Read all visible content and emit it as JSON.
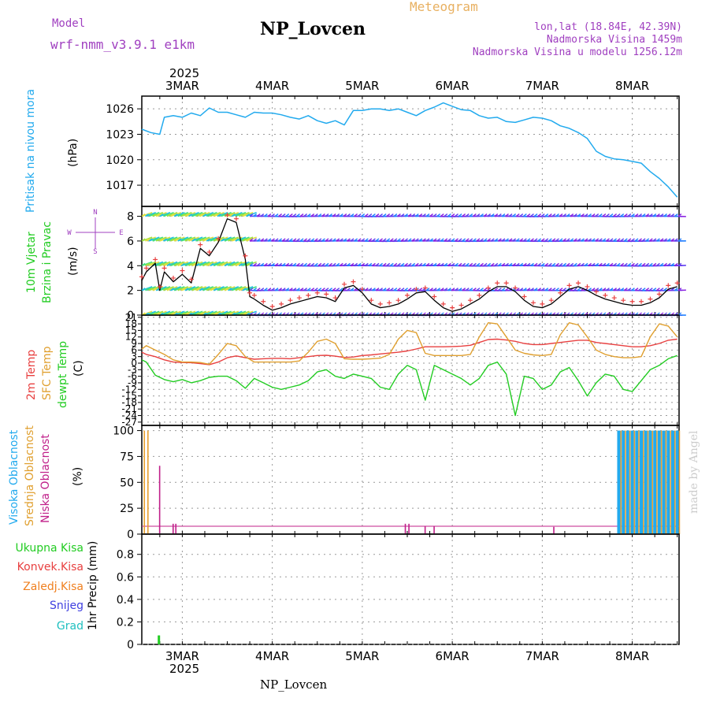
{
  "header": {
    "model_label": "Model",
    "model_name": "wrf-nmm_v3.9.1 e1km",
    "station": "NP_Lovcen",
    "title": "Meteogram",
    "coords": "lon,lat (18.84E, 42.39N)",
    "elevation": "Nadmorska Visina 1459m",
    "model_elevation": "Nadmorska Visina u modelu 1256.12m",
    "year_top": "2025",
    "year_bottom": "2025",
    "footer_station": "NP_Lovcen",
    "credit": "made by Angel"
  },
  "colors": {
    "pressure": "#22aaee",
    "t2m": "#e84040",
    "sfc": "#e0a030",
    "dewpt": "#22cc22",
    "high_cloud": "#22aaee",
    "mid_cloud": "#e8a030",
    "low_cloud": "#c0208a",
    "wind_speed": "#000000",
    "wind_marker": "#e84040",
    "legend_purple": "#a040c0",
    "frame": "#000000",
    "grid": "#999999"
  },
  "x_axis": {
    "day_labels": [
      "3MAR",
      "4MAR",
      "5MAR",
      "6MAR",
      "7MAR",
      "8MAR"
    ],
    "range_days": [
      2.55,
      8.52
    ]
  },
  "panels": {
    "pressure": {
      "ylabel_a": "Pritisak na nivou mora",
      "ylabel_b": "(hPa)",
      "ticks": [
        "1026",
        "1023",
        "1020",
        "1017"
      ]
    },
    "wind": {
      "ylabel_a": "10m Vjetar",
      "ylabel_b": "Brzina i Pravac",
      "ylabel_c": "(m/s)",
      "ticks": [
        "0",
        "2",
        "4",
        "6",
        "8"
      ],
      "compass_n": "N",
      "compass_w": "W",
      "compass_e": "E",
      "compass_s": "S"
    },
    "temperature": {
      "ylabel_a": "2m Temp",
      "ylabel_b": "SFC Temp",
      "ylabel_c": "dewpt Temp",
      "ylabel_d": "(C)",
      "ticks": [
        "21",
        "18",
        "15",
        "12",
        "9",
        "6",
        "3",
        "0",
        "-3",
        "-6",
        "-9",
        "-12",
        "-15",
        "-18",
        "-21",
        "-24",
        "-27"
      ]
    },
    "cloud": {
      "ylabel_a": "Visoka Oblacnost",
      "ylabel_b": "Srednja Oblacnost",
      "ylabel_c": "Niska Oblacnost",
      "ylabel_d": "(%)",
      "ticks": [
        "0",
        "25",
        "50",
        "75",
        "100"
      ]
    },
    "precip": {
      "legend": [
        "Ukupna Kisa",
        "Konvek.Kisa",
        "Zaledj.Kisa",
        "Snijeg",
        "Grad"
      ],
      "legend_colors": [
        "#22cc22",
        "#e84040",
        "#f08020",
        "#4040e0",
        "#20c0c0"
      ],
      "ylabel": "1hr Precip (mm)",
      "ticks": [
        "0",
        "0.2",
        "0.4",
        "0.6",
        "0.8"
      ]
    }
  },
  "chart_data": [
    {
      "type": "line",
      "name": "pressure",
      "ylim": [
        1014.5,
        1027.5
      ],
      "x": [
        2.55,
        2.65,
        2.75,
        2.8,
        2.9,
        3.0,
        3.1,
        3.2,
        3.3,
        3.4,
        3.5,
        3.6,
        3.7,
        3.8,
        3.9,
        4.0,
        4.1,
        4.2,
        4.3,
        4.4,
        4.5,
        4.6,
        4.7,
        4.8,
        4.9,
        5.0,
        5.1,
        5.2,
        5.3,
        5.4,
        5.5,
        5.6,
        5.7,
        5.8,
        5.9,
        6.0,
        6.1,
        6.2,
        6.3,
        6.4,
        6.5,
        6.6,
        6.7,
        6.8,
        6.9,
        7.0,
        7.1,
        7.2,
        7.3,
        7.4,
        7.5,
        7.6,
        7.7,
        7.8,
        7.9,
        8.0,
        8.1,
        8.2,
        8.3,
        8.4,
        8.5
      ],
      "y": [
        1023.6,
        1023.2,
        1023.0,
        1025.0,
        1025.2,
        1025.0,
        1025.5,
        1025.2,
        1026.1,
        1025.6,
        1025.6,
        1025.3,
        1025.0,
        1025.6,
        1025.5,
        1025.5,
        1025.3,
        1025.0,
        1024.8,
        1025.2,
        1024.6,
        1024.3,
        1024.6,
        1024.1,
        1025.8,
        1025.8,
        1026.0,
        1026.0,
        1025.8,
        1026.0,
        1025.6,
        1025.2,
        1025.8,
        1026.2,
        1026.7,
        1026.3,
        1025.9,
        1025.8,
        1025.2,
        1024.9,
        1025.0,
        1024.5,
        1024.4,
        1024.7,
        1025.0,
        1024.9,
        1024.6,
        1024.0,
        1023.7,
        1023.2,
        1022.5,
        1021.0,
        1020.4,
        1020.1,
        1020.0,
        1019.8,
        1019.6,
        1018.6,
        1017.8,
        1016.8,
        1015.6
      ]
    },
    {
      "type": "line",
      "name": "wind speed",
      "ylim": [
        0,
        8.8
      ],
      "x": [
        2.55,
        2.6,
        2.7,
        2.75,
        2.8,
        2.9,
        3.0,
        3.1,
        3.2,
        3.3,
        3.4,
        3.5,
        3.6,
        3.7,
        3.75,
        3.8,
        3.9,
        4.0,
        4.1,
        4.2,
        4.3,
        4.4,
        4.5,
        4.6,
        4.7,
        4.8,
        4.9,
        5.0,
        5.1,
        5.2,
        5.3,
        5.4,
        5.5,
        5.6,
        5.7,
        5.8,
        5.9,
        6.0,
        6.1,
        6.2,
        6.3,
        6.4,
        6.5,
        6.6,
        6.7,
        6.8,
        6.9,
        7.0,
        7.1,
        7.2,
        7.3,
        7.4,
        7.5,
        7.6,
        7.7,
        7.8,
        7.9,
        8.0,
        8.1,
        8.2,
        8.3,
        8.4,
        8.5
      ],
      "y": [
        2.8,
        3.5,
        4.2,
        2.0,
        3.5,
        2.7,
        3.3,
        2.6,
        5.4,
        4.8,
        5.9,
        7.8,
        7.5,
        4.5,
        1.5,
        1.3,
        0.8,
        0.4,
        0.6,
        0.9,
        1.1,
        1.3,
        1.5,
        1.4,
        1.1,
        2.2,
        2.4,
        1.8,
        0.9,
        0.6,
        0.7,
        0.9,
        1.3,
        1.8,
        1.9,
        1.2,
        0.6,
        0.3,
        0.5,
        0.9,
        1.3,
        1.9,
        2.3,
        2.3,
        1.9,
        1.2,
        0.7,
        0.6,
        0.9,
        1.5,
        2.1,
        2.3,
        2.0,
        1.6,
        1.3,
        1.1,
        0.9,
        0.8,
        0.8,
        1.0,
        1.4,
        2.1,
        2.3
      ]
    },
    {
      "type": "line",
      "name": "temperature",
      "ylim": [
        -28.5,
        22
      ],
      "x": [
        2.55,
        2.6,
        2.7,
        2.8,
        2.9,
        3.0,
        3.1,
        3.2,
        3.3,
        3.4,
        3.5,
        3.6,
        3.7,
        3.8,
        3.9,
        4.0,
        4.1,
        4.2,
        4.3,
        4.4,
        4.5,
        4.6,
        4.7,
        4.8,
        4.9,
        5.0,
        5.1,
        5.2,
        5.3,
        5.4,
        5.5,
        5.6,
        5.7,
        5.8,
        5.9,
        6.0,
        6.1,
        6.2,
        6.3,
        6.4,
        6.5,
        6.6,
        6.7,
        6.8,
        6.9,
        7.0,
        7.1,
        7.2,
        7.3,
        7.4,
        7.5,
        7.6,
        7.7,
        7.8,
        7.9,
        8.0,
        8.1,
        8.2,
        8.3,
        8.4,
        8.5
      ],
      "series": [
        {
          "name": "2m Temp",
          "values": [
            5,
            4,
            3,
            1.5,
            0.5,
            0.3,
            0.2,
            -0.2,
            -0.7,
            0.5,
            2.5,
            3.3,
            2.5,
            1.8,
            2.0,
            2.2,
            2.2,
            2.0,
            2.5,
            3.0,
            3.5,
            3.6,
            3.2,
            2.6,
            2.8,
            3.5,
            3.8,
            4.2,
            4.6,
            5.0,
            5.6,
            6.5,
            7.5,
            7.5,
            7.5,
            7.6,
            7.8,
            8.2,
            9.5,
            10.8,
            11.0,
            10.6,
            10.0,
            9.0,
            8.5,
            8.5,
            9.0,
            9.5,
            10.0,
            10.5,
            10.5,
            9.5,
            9.0,
            8.5,
            8.0,
            7.5,
            7.5,
            8.0,
            9.0,
            10.5,
            11.0
          ]
        },
        {
          "name": "SFC Temp",
          "values": [
            6.5,
            8,
            6,
            4,
            1.5,
            0.5,
            0.5,
            0.3,
            -0.5,
            4.0,
            9.0,
            8.0,
            3.0,
            0.5,
            0.5,
            0.5,
            0.5,
            0.5,
            1.0,
            5.0,
            10.0,
            11.0,
            9.0,
            2.0,
            1.8,
            1.8,
            2.0,
            2.3,
            4.0,
            11.0,
            15.0,
            14.0,
            4.5,
            3.5,
            3.5,
            3.5,
            3.5,
            4.0,
            12.0,
            18.5,
            18.0,
            12.0,
            6.0,
            4.5,
            3.8,
            3.5,
            4.0,
            13.0,
            18.5,
            17.5,
            12.0,
            6.0,
            4.0,
            3.0,
            2.5,
            2.5,
            3.0,
            12.0,
            18.0,
            17.0,
            12.0
          ]
        },
        {
          "name": "dewpt Temp",
          "values": [
            1.5,
            0.5,
            -5.5,
            -7.5,
            -8.5,
            -7.5,
            -9.0,
            -8.0,
            -6.5,
            -6.0,
            -6.0,
            -8.0,
            -11.5,
            -7.0,
            -9.0,
            -11.0,
            -12.0,
            -11.0,
            -10.0,
            -8.0,
            -4.0,
            -3.0,
            -6.0,
            -7.0,
            -5.0,
            -6.0,
            -7.0,
            -11.0,
            -12.0,
            -5.0,
            -1.0,
            -3.0,
            -17.0,
            -1.0,
            -3.0,
            -5.0,
            -7.0,
            -10.0,
            -7.0,
            -1.0,
            0.5,
            -5.0,
            -24.0,
            -6.0,
            -7.0,
            -12.0,
            -10.0,
            -4.0,
            -2.0,
            -8.0,
            -15.0,
            -9.0,
            -5.0,
            -6.0,
            -12.0,
            -13.0,
            -8.0,
            -3.0,
            -1.0,
            2.0,
            3.5
          ]
        }
      ]
    },
    {
      "type": "bar",
      "name": "cloud cover",
      "ylim": [
        0,
        105
      ],
      "series": [
        {
          "name": "Srednja Oblacnost",
          "x": [
            2.58,
            2.62
          ],
          "values": [
            100,
            100
          ]
        },
        {
          "name": "Niska Oblacnost",
          "x": [
            2.75,
            2.9,
            2.93,
            5.48,
            5.52,
            5.7,
            5.8,
            7.13
          ],
          "values": [
            66,
            10,
            10,
            10,
            10,
            8,
            8,
            7
          ]
        },
        {
          "name": "Visoka Oblacnost",
          "x": [
            7.85,
            7.9,
            7.95,
            8.0,
            8.05,
            8.1,
            8.15,
            8.2,
            8.25,
            8.3,
            8.35,
            8.4,
            8.45,
            8.5
          ],
          "values": [
            100,
            100,
            100,
            100,
            100,
            100,
            100,
            100,
            100,
            100,
            100,
            100,
            100,
            100
          ]
        }
      ]
    },
    {
      "type": "bar",
      "name": "1hr precipitation",
      "ylim": [
        0,
        0.98
      ],
      "series": [
        {
          "name": "Ukupna Kisa",
          "x": [
            2.74
          ],
          "values": [
            0.08
          ]
        }
      ]
    }
  ]
}
